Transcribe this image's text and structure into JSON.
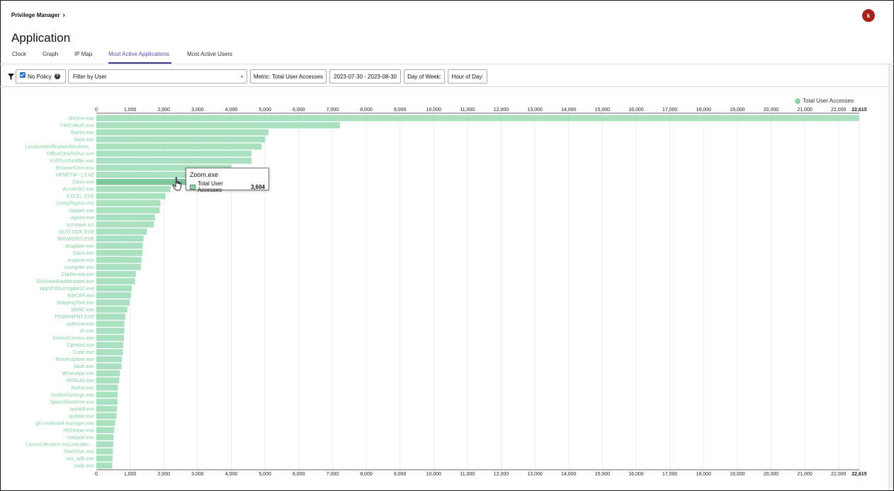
{
  "header": {
    "breadcrumb": "Privilege Manager",
    "title": "Application",
    "avatar_initial": "k"
  },
  "tabs": [
    {
      "label": "Clock",
      "active": false
    },
    {
      "label": "Graph",
      "active": false
    },
    {
      "label": "IP Map",
      "active": false
    },
    {
      "label": "Most Active Applications",
      "active": true
    },
    {
      "label": "Most Active Users",
      "active": false
    }
  ],
  "toolbar": {
    "filter_icon": "filter-icon",
    "no_policy_label": "No Policy",
    "no_policy_checked": true,
    "filter_select_value": "Filter by User",
    "metric_label": "Metric: Total User Accesses",
    "date_range": "2023-07-30 - 2023-08-30",
    "day_of_week": "Day of Week:",
    "hour_of_day": "Hour of Day:"
  },
  "tooltip": {
    "title": "Zoom.exe",
    "series": "Total User Accesses",
    "value": "3,604"
  },
  "chart_data": {
    "type": "bar",
    "orientation": "horizontal",
    "legend": "Total User Accesses",
    "legend_position": "top-right",
    "bar_color": "#a8e0c0",
    "label_color": "#7fcfa2",
    "xlim": [
      0,
      22615
    ],
    "x_ticks": [
      "0",
      "1,000",
      "2,000",
      "3,000",
      "4,000",
      "5,000",
      "6,000",
      "7,000",
      "8,000",
      "9,000",
      "10,000",
      "11,000",
      "12,000",
      "13,000",
      "14,000",
      "15,000",
      "16,000",
      "17,000",
      "18,000",
      "19,000",
      "20,000",
      "21,000",
      "22,000",
      "22,615"
    ],
    "grid": true,
    "categories": [
      "chrome.exe",
      "FileCoAuth.exe",
      "Teams.exe",
      "slack.exe",
      "LocationNotificationWindows....",
      "OfficeClickToRun.exe",
      "FullTrustNotifier.exe",
      "BrowserCore.exe",
      "HPNETW~1.EXE",
      "Zoom.exe",
      "AcroRd32.exe",
      "EXCEL.EXE",
      "CompPkgSrv.exe",
      "Update.exe",
      "Apoint.exe",
      "scrnsave.scr",
      "OUTLOOK.EXE",
      "WINWORD.EXE",
      "ptupdate.exe",
      "Slack.exe",
      "iexplore.exe",
      "courgette.exe",
      "ClipRenew.exe",
      "GfxDownloadWrapper.exe",
      "AppVDllSurrogate32.exe",
      "RdrCEF.exe",
      "SnippingTool.exe",
      "WMIC.exe",
      "POWERPNT.EXE",
      "pythonw.exe",
      "sh.exe",
      "DeviceCensus.exe",
      "CptHost.exe",
      "Code.exe",
      "BraveUpdate.exe",
      "bash.exe",
      "WhatsApp.exe",
      "MSBuild.exe",
      "firefox.exe",
      "SystemSettings.exe",
      "SpeechRuntime.exe",
      "taskkill.exe",
      "updater.exe",
      "git-credential-manager.exe",
      "HDHelper.exe",
      "notepad.exe",
      "Lenovo.Modern.ImController....",
      "OneDrive.exe",
      "nox_adb.exe",
      "node.exe"
    ],
    "values": [
      22615,
      7220,
      5100,
      5000,
      4900,
      4600,
      4600,
      4000,
      4000,
      3604,
      2200,
      2050,
      1900,
      1880,
      1740,
      1700,
      1500,
      1400,
      1380,
      1370,
      1340,
      1320,
      1170,
      1150,
      1050,
      1030,
      990,
      920,
      860,
      830,
      830,
      820,
      800,
      790,
      760,
      750,
      700,
      680,
      640,
      630,
      630,
      610,
      600,
      560,
      530,
      510,
      500,
      490,
      480,
      470
    ],
    "highlight_index": 9,
    "highlight_color": "#7cc79c"
  }
}
